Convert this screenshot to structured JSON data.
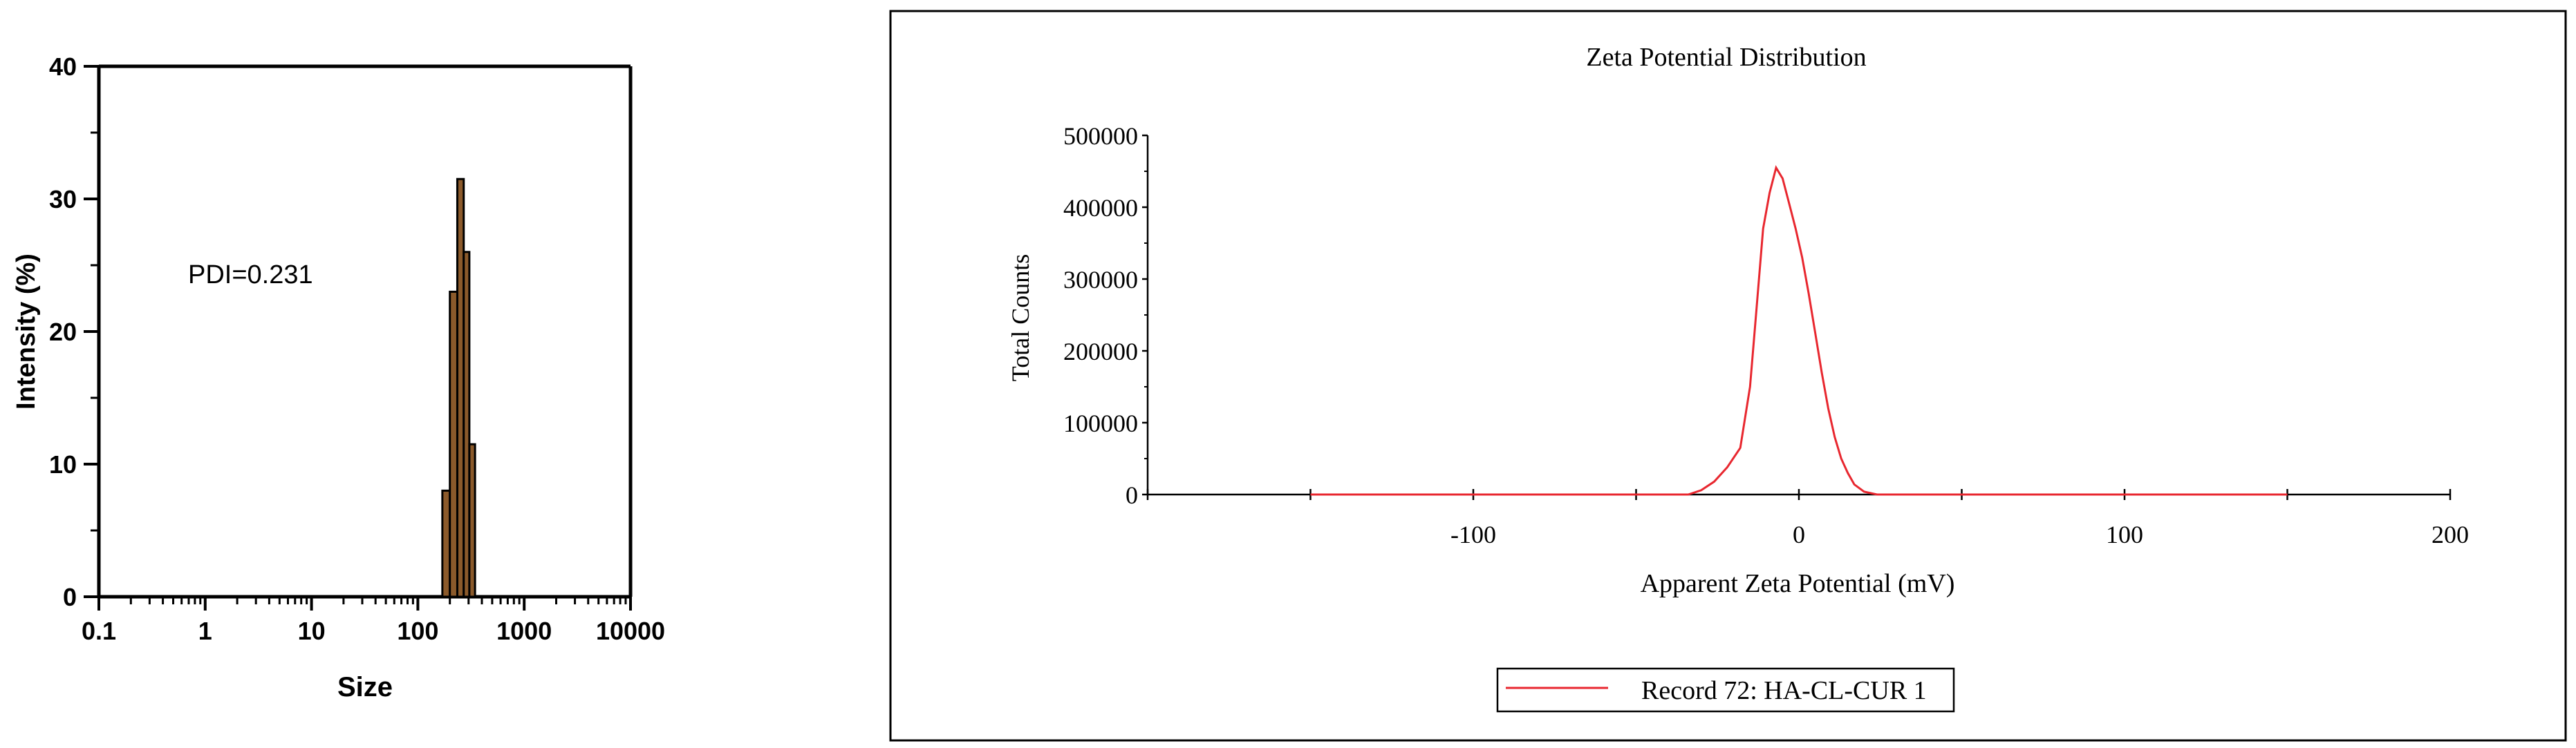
{
  "chart_data": [
    {
      "type": "bar",
      "title": "",
      "xlabel": "Size",
      "ylabel": "Intensity (%)",
      "x_scale": "log",
      "xlim": [
        0.1,
        10000
      ],
      "ylim": [
        0,
        40
      ],
      "x_ticks": [
        "0.1",
        "1",
        "10",
        "100",
        "1000",
        "10000"
      ],
      "y_ticks": [
        "0",
        "10",
        "20",
        "30",
        "40"
      ],
      "annotation": "PDI=0.231",
      "bar_color": "#8B5A2B",
      "bars": [
        {
          "x0": 170,
          "x1": 200,
          "value": 8
        },
        {
          "x0": 200,
          "x1": 235,
          "value": 23
        },
        {
          "x0": 235,
          "x1": 270,
          "value": 31.5
        },
        {
          "x0": 270,
          "x1": 305,
          "value": 26
        },
        {
          "x0": 305,
          "x1": 345,
          "value": 11.5
        }
      ]
    },
    {
      "type": "line",
      "title": "Zeta Potential Distribution",
      "xlabel": "Apparent Zeta Potential (mV)",
      "ylabel": "Total Counts",
      "xlim": [
        -200,
        200
      ],
      "ylim": [
        0,
        500000
      ],
      "x_ticks": [
        "-100",
        "0",
        "100",
        "200"
      ],
      "y_ticks": [
        "0",
        "100000",
        "200000",
        "300000",
        "400000",
        "500000"
      ],
      "legend_position": "bottom-center",
      "series": [
        {
          "name": "Record 72: HA-CL-CUR 1",
          "color": "#E8272F",
          "x": [
            -150,
            -34,
            -30,
            -26,
            -22,
            -18,
            -15,
            -13,
            -11,
            -9,
            -7,
            -5,
            -3,
            -1,
            1,
            3,
            5,
            7,
            9,
            11,
            13,
            15,
            17,
            20,
            24,
            150
          ],
          "y": [
            0,
            0,
            6000,
            18000,
            38000,
            65000,
            150000,
            260000,
            370000,
            420000,
            455000,
            440000,
            405000,
            370000,
            330000,
            280000,
            225000,
            170000,
            120000,
            80000,
            50000,
            30000,
            14000,
            4000,
            0,
            0
          ]
        }
      ]
    }
  ]
}
